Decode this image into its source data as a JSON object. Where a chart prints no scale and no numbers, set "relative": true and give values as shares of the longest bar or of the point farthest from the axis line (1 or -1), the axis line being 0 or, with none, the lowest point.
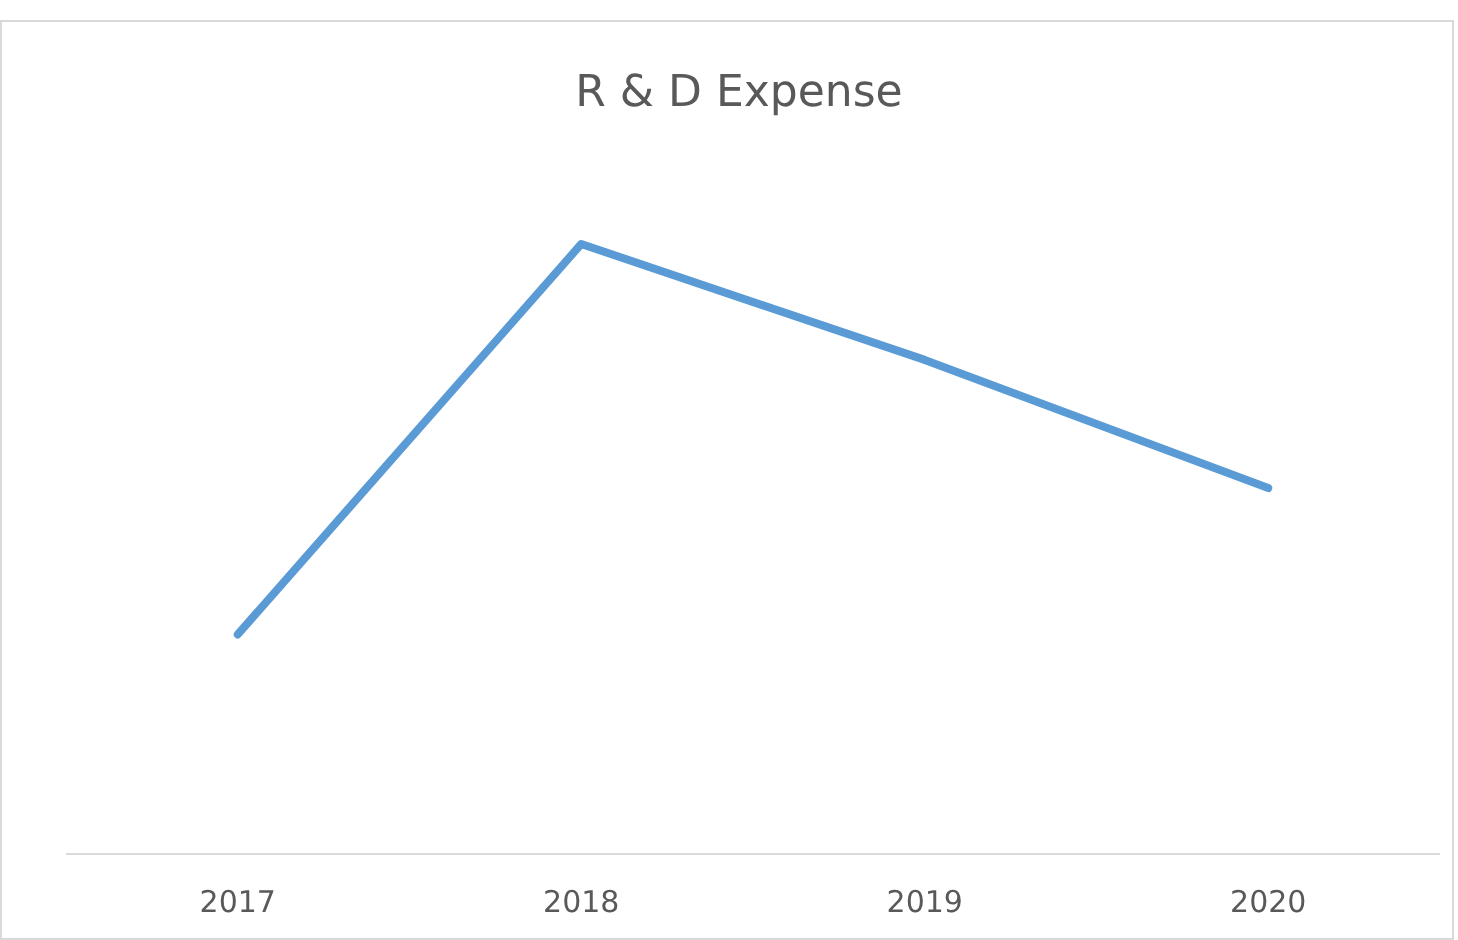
{
  "chart_data": {
    "type": "line",
    "title": "R & D Expense",
    "categories": [
      "2017",
      "2018",
      "2019",
      "2020"
    ],
    "relative": true,
    "series": [
      {
        "color": "#5b9bd5",
        "values": [
          0.36,
          1,
          0.81,
          0.6
        ]
      }
    ],
    "marker": "none",
    "line_style": "solid"
  }
}
